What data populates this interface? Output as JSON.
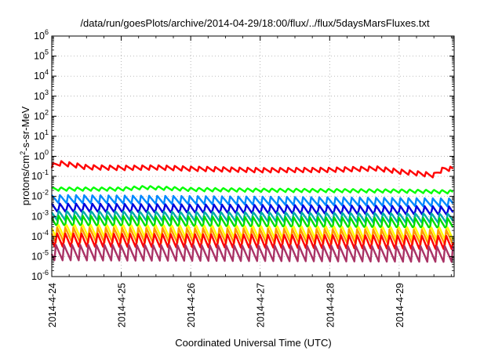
{
  "chart_data": {
    "type": "line",
    "title": "/data/run/goesPlots/archive/2014-04-29/18:00/flux/../flux/5daysMarsFluxes.txt",
    "xlabel": "Coordinated Universal Time (UTC)",
    "ylabel_parts": [
      "protons/cm",
      "2",
      "-s-sr-MeV"
    ],
    "yscale": "log",
    "ylim": [
      1e-06,
      1000000
    ],
    "xlim": [
      "2014-04-24T00:00",
      "2014-04-29T19:00"
    ],
    "grid": true,
    "x_tick_labels": [
      "2014-4-24",
      "2014-4-25",
      "2014-4-26",
      "2014-4-27",
      "2014-4-28",
      "2014-4-29"
    ],
    "y_ticks": [
      {
        "base": "10",
        "exp": "-6",
        "value": 1e-06
      },
      {
        "base": "10",
        "exp": "-5",
        "value": 1e-05
      },
      {
        "base": "10",
        "exp": "-4",
        "value": 0.0001
      },
      {
        "base": "10",
        "exp": "-3",
        "value": 0.001
      },
      {
        "base": "10",
        "exp": "-2",
        "value": 0.01
      },
      {
        "base": "10",
        "exp": "-1",
        "value": 0.1
      },
      {
        "base": "10",
        "exp": "0",
        "value": 1
      },
      {
        "base": "10",
        "exp": "1",
        "value": 10
      },
      {
        "base": "10",
        "exp": "2",
        "value": 100
      },
      {
        "base": "10",
        "exp": "3",
        "value": 1000
      },
      {
        "base": "10",
        "exp": "4",
        "value": 10000
      },
      {
        "base": "10",
        "exp": "5",
        "value": 100000
      },
      {
        "base": "10",
        "exp": "6",
        "value": 1000000
      }
    ],
    "sawtooth_period_hours": 2.8,
    "series": [
      {
        "color": "#ff0000",
        "low": 0.26,
        "high": 0.45,
        "trend": [
          [
            "2014-04-24T00:00",
            0.45
          ],
          [
            "2014-04-24T03:00",
            0.6
          ],
          [
            "2014-04-24T12:00",
            0.38
          ],
          [
            "2014-04-25T00:00",
            0.35
          ],
          [
            "2014-04-25T12:00",
            0.37
          ],
          [
            "2014-04-26T00:00",
            0.32
          ],
          [
            "2014-04-27T00:00",
            0.27
          ],
          [
            "2014-04-28T00:00",
            0.28
          ],
          [
            "2014-04-28T16:00",
            0.33
          ],
          [
            "2014-04-29T00:00",
            0.23
          ],
          [
            "2014-04-29T12:00",
            0.15
          ],
          [
            "2014-04-29T16:00",
            0.33
          ],
          [
            "2014-04-29T19:00",
            0.3
          ]
        ]
      },
      {
        "color": "#00ff00",
        "low": 0.018,
        "high": 0.03,
        "trend": [
          [
            "2014-04-24T00:00",
            0.025
          ],
          [
            "2014-04-25T00:00",
            0.025
          ],
          [
            "2014-04-25T08:00",
            0.03
          ],
          [
            "2014-04-26T00:00",
            0.024
          ],
          [
            "2014-04-27T00:00",
            0.022
          ],
          [
            "2014-04-28T00:00",
            0.021
          ],
          [
            "2014-04-29T00:00",
            0.02
          ],
          [
            "2014-04-29T19:00",
            0.018
          ]
        ]
      },
      {
        "color": "#0088ff",
        "low": 0.0045,
        "high": 0.012,
        "trend": [
          [
            "2014-04-24T00:00",
            0.009
          ],
          [
            "2014-04-29T19:00",
            0.006
          ]
        ]
      },
      {
        "color": "#0000dd",
        "low": 0.0015,
        "high": 0.005,
        "trend": [
          [
            "2014-04-24T00:00",
            0.0035
          ],
          [
            "2014-04-29T19:00",
            0.0025
          ]
        ]
      },
      {
        "color": "#00aaaa",
        "low": 0.0006,
        "high": 0.002,
        "trend": [
          [
            "2014-04-24T00:00",
            0.0015
          ],
          [
            "2014-04-29T19:00",
            0.0011
          ]
        ]
      },
      {
        "color": "#00dd00",
        "low": 0.0003,
        "high": 0.0012,
        "trend": [
          [
            "2014-04-24T00:00",
            0.0008
          ],
          [
            "2014-04-29T19:00",
            0.0006
          ]
        ]
      },
      {
        "color": "#ffff00",
        "low": 8e-05,
        "high": 0.0005,
        "trend": [
          [
            "2014-04-24T00:00",
            0.0003
          ],
          [
            "2014-04-29T19:00",
            0.00022
          ]
        ]
      },
      {
        "color": "#ff9900",
        "low": 5e-05,
        "high": 0.0003,
        "trend": [
          [
            "2014-04-24T00:00",
            0.0002
          ],
          [
            "2014-04-29T19:00",
            0.00015
          ]
        ]
      },
      {
        "color": "#ff0000",
        "low": 2.5e-05,
        "high": 0.00018,
        "trend": [
          [
            "2014-04-24T00:00",
            0.00012
          ],
          [
            "2014-04-29T19:00",
            9e-05
          ]
        ]
      },
      {
        "color": "#aa3366",
        "low": 6e-06,
        "high": 4e-05,
        "trend": [
          [
            "2014-04-24T00:00",
            3e-05
          ],
          [
            "2014-04-29T19:00",
            2.5e-05
          ]
        ]
      }
    ]
  }
}
